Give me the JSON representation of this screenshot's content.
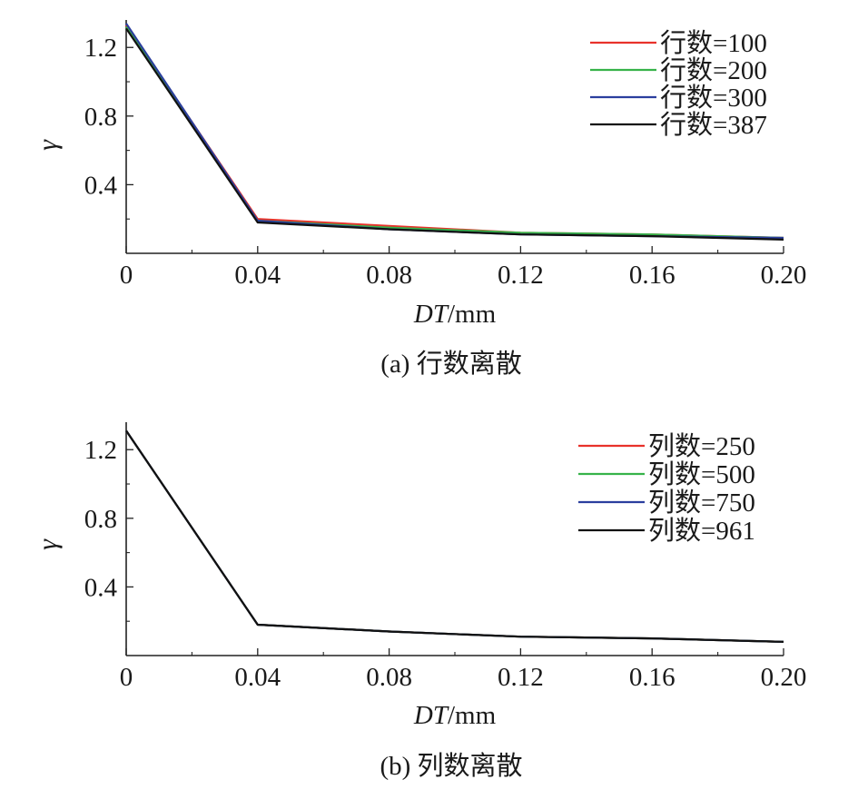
{
  "chart_data": [
    {
      "type": "line",
      "caption": "(a) 行数离散",
      "xlabel_italic": "DT",
      "xlabel_unit": "/mm",
      "ylabel": "γ",
      "xlim": [
        0,
        0.2
      ],
      "ylim": [
        0.0,
        1.36
      ],
      "xticks": [
        0,
        0.04,
        0.08,
        0.12,
        0.16,
        0.2
      ],
      "xtick_labels": [
        "0",
        "0.04",
        "0.08",
        "0.12",
        "0.16",
        "0.20"
      ],
      "yticks": [
        0.4,
        0.8,
        1.2
      ],
      "ytick_labels": [
        "0.4",
        "0.8",
        "1.2"
      ],
      "legend_position": "top-right",
      "x": [
        0,
        0.04,
        0.08,
        0.12,
        0.16,
        0.2
      ],
      "series": [
        {
          "name": "行数=100",
          "color": "#e8322b",
          "values": [
            1.33,
            0.2,
            0.16,
            0.12,
            0.11,
            0.09
          ]
        },
        {
          "name": "行数=200",
          "color": "#37b34a",
          "values": [
            1.32,
            0.19,
            0.15,
            0.12,
            0.11,
            0.09
          ]
        },
        {
          "name": "行数=300",
          "color": "#2b3f9e",
          "values": [
            1.34,
            0.19,
            0.14,
            0.11,
            0.1,
            0.09
          ]
        },
        {
          "name": "行数=387",
          "color": "#111111",
          "values": [
            1.31,
            0.18,
            0.14,
            0.11,
            0.1,
            0.08
          ]
        }
      ]
    },
    {
      "type": "line",
      "caption": "(b) 列数离散",
      "xlabel_italic": "DT",
      "xlabel_unit": "/mm",
      "ylabel": "γ",
      "xlim": [
        0,
        0.2
      ],
      "ylim": [
        0.0,
        1.36
      ],
      "xticks": [
        0,
        0.04,
        0.08,
        0.12,
        0.16,
        0.2
      ],
      "xtick_labels": [
        "0",
        "0.04",
        "0.08",
        "0.12",
        "0.16",
        "0.20"
      ],
      "yticks": [
        0.4,
        0.8,
        1.2
      ],
      "ytick_labels": [
        "0.4",
        "0.8",
        "1.2"
      ],
      "legend_position": "top-right",
      "x": [
        0,
        0.04,
        0.08,
        0.12,
        0.16,
        0.2
      ],
      "series": [
        {
          "name": "列数=250",
          "color": "#e8322b",
          "values": [
            1.31,
            0.18,
            0.14,
            0.11,
            0.1,
            0.08
          ]
        },
        {
          "name": "列数=500",
          "color": "#37b34a",
          "values": [
            1.31,
            0.18,
            0.14,
            0.11,
            0.1,
            0.08
          ]
        },
        {
          "name": "列数=750",
          "color": "#2b3f9e",
          "values": [
            1.31,
            0.18,
            0.14,
            0.11,
            0.1,
            0.08
          ]
        },
        {
          "name": "列数=961",
          "color": "#111111",
          "values": [
            1.31,
            0.18,
            0.14,
            0.11,
            0.1,
            0.08
          ]
        }
      ]
    }
  ]
}
